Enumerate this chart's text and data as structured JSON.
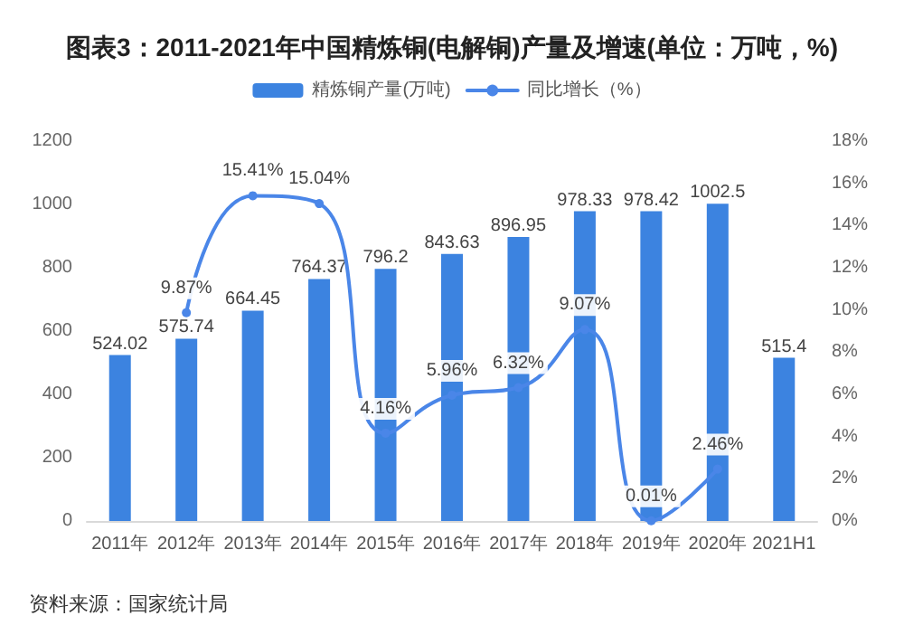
{
  "chart_data": {
    "type": "bar",
    "title": "图表3：2011-2021年中国精炼铜(电解铜)产量及增速(单位：万吨，%)",
    "categories": [
      "2011年",
      "2012年",
      "2013年",
      "2014年",
      "2015年",
      "2016年",
      "2017年",
      "2018年",
      "2019年",
      "2020年",
      "2021H1"
    ],
    "series": [
      {
        "name": "精炼铜产量(万吨)",
        "type": "bar",
        "color": "#3c83e0",
        "values": [
          524.02,
          575.74,
          664.45,
          764.37,
          796.2,
          843.63,
          896.95,
          978.33,
          978.42,
          1002.5,
          515.4
        ],
        "value_labels": [
          "524.02",
          "575.74",
          "664.45",
          "764.37",
          "796.2",
          "843.63",
          "896.95",
          "978.33",
          "978.42",
          "1002.5",
          "515.4"
        ]
      },
      {
        "name": "同比增长（%）",
        "type": "line",
        "axis": "y2",
        "color": "#4a86e8",
        "values": [
          null,
          9.87,
          15.41,
          15.04,
          4.16,
          5.96,
          6.32,
          9.07,
          0.01,
          2.46,
          null
        ],
        "value_labels": [
          null,
          "9.87%",
          "15.41%",
          "15.04%",
          "4.16%",
          "5.96%",
          "6.32%",
          "9.07%",
          "0.01%",
          "2.46%",
          null
        ]
      }
    ],
    "ylim": [
      0,
      1200
    ],
    "yticks": [
      0,
      200,
      400,
      600,
      800,
      1000,
      1200
    ],
    "y2lim": [
      0,
      18
    ],
    "y2ticks": [
      {
        "value": 0,
        "label": "0%"
      },
      {
        "value": 2,
        "label": "2%"
      },
      {
        "value": 4,
        "label": "4%"
      },
      {
        "value": 6,
        "label": "6%"
      },
      {
        "value": 8,
        "label": "8%"
      },
      {
        "value": 10,
        "label": "10%"
      },
      {
        "value": 12,
        "label": "12%"
      },
      {
        "value": 14,
        "label": "14%"
      },
      {
        "value": 16,
        "label": "16%"
      },
      {
        "value": 18,
        "label": "18%"
      }
    ],
    "marker": "circle",
    "grid": false,
    "legend": "top",
    "annotations": [
      "资料来源：国家统计局"
    ]
  }
}
